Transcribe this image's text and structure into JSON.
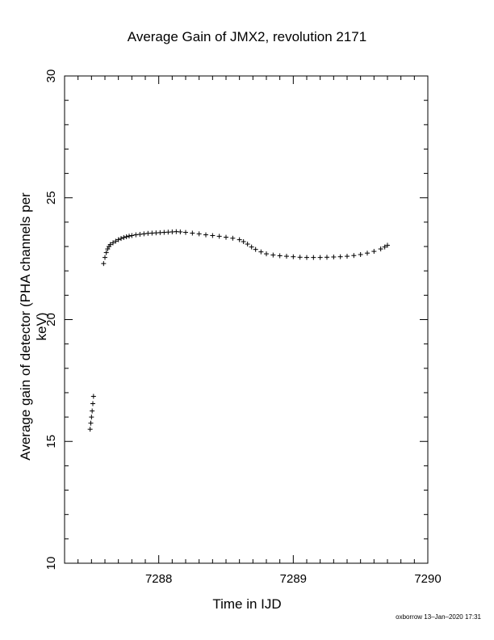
{
  "chart_data": {
    "type": "scatter",
    "title": "Average Gain of JMX2, revolution 2171",
    "xlabel": "Time in IJD",
    "ylabel": "Average gain of detector (PHA channels per keV)",
    "xlim": [
      7287.3,
      7290
    ],
    "ylim": [
      10,
      30
    ],
    "xticks": [
      7288,
      7289,
      7290
    ],
    "yticks": [
      10,
      15,
      20,
      25,
      30
    ],
    "marker": "plus",
    "grid": false,
    "series": [
      {
        "x": [
          7287.49,
          7287.495,
          7287.5,
          7287.505,
          7287.51,
          7287.515,
          7287.59,
          7287.6,
          7287.61,
          7287.62,
          7287.63,
          7287.64,
          7287.66,
          7287.68,
          7287.7,
          7287.72,
          7287.74,
          7287.76,
          7287.78,
          7287.8,
          7287.83,
          7287.86,
          7287.89,
          7287.92,
          7287.95,
          7287.98,
          7288.01,
          7288.04,
          7288.07,
          7288.1,
          7288.13,
          7288.16,
          7288.2,
          7288.25,
          7288.3,
          7288.35,
          7288.4,
          7288.45,
          7288.5,
          7288.55,
          7288.6,
          7288.63,
          7288.66,
          7288.69,
          7288.72,
          7288.76,
          7288.8,
          7288.85,
          7288.9,
          7288.95,
          7289.0,
          7289.05,
          7289.1,
          7289.15,
          7289.2,
          7289.25,
          7289.3,
          7289.35,
          7289.4,
          7289.45,
          7289.5,
          7289.55,
          7289.6,
          7289.65,
          7289.68,
          7289.7
        ],
        "y": [
          15.5,
          15.75,
          16.0,
          16.25,
          16.55,
          16.85,
          22.3,
          22.55,
          22.75,
          22.9,
          23.0,
          23.08,
          23.15,
          23.22,
          23.28,
          23.33,
          23.37,
          23.4,
          23.43,
          23.45,
          23.48,
          23.5,
          23.52,
          23.54,
          23.55,
          23.56,
          23.57,
          23.58,
          23.59,
          23.6,
          23.61,
          23.6,
          23.58,
          23.55,
          23.52,
          23.48,
          23.45,
          23.42,
          23.38,
          23.34,
          23.28,
          23.2,
          23.1,
          22.98,
          22.88,
          22.78,
          22.7,
          22.65,
          22.62,
          22.6,
          22.58,
          22.56,
          22.55,
          22.55,
          22.55,
          22.56,
          22.57,
          22.58,
          22.6,
          22.63,
          22.67,
          22.73,
          22.8,
          22.9,
          22.98,
          23.05
        ]
      }
    ]
  },
  "footer": "oxborrow 13–Jan–2020 17:31"
}
